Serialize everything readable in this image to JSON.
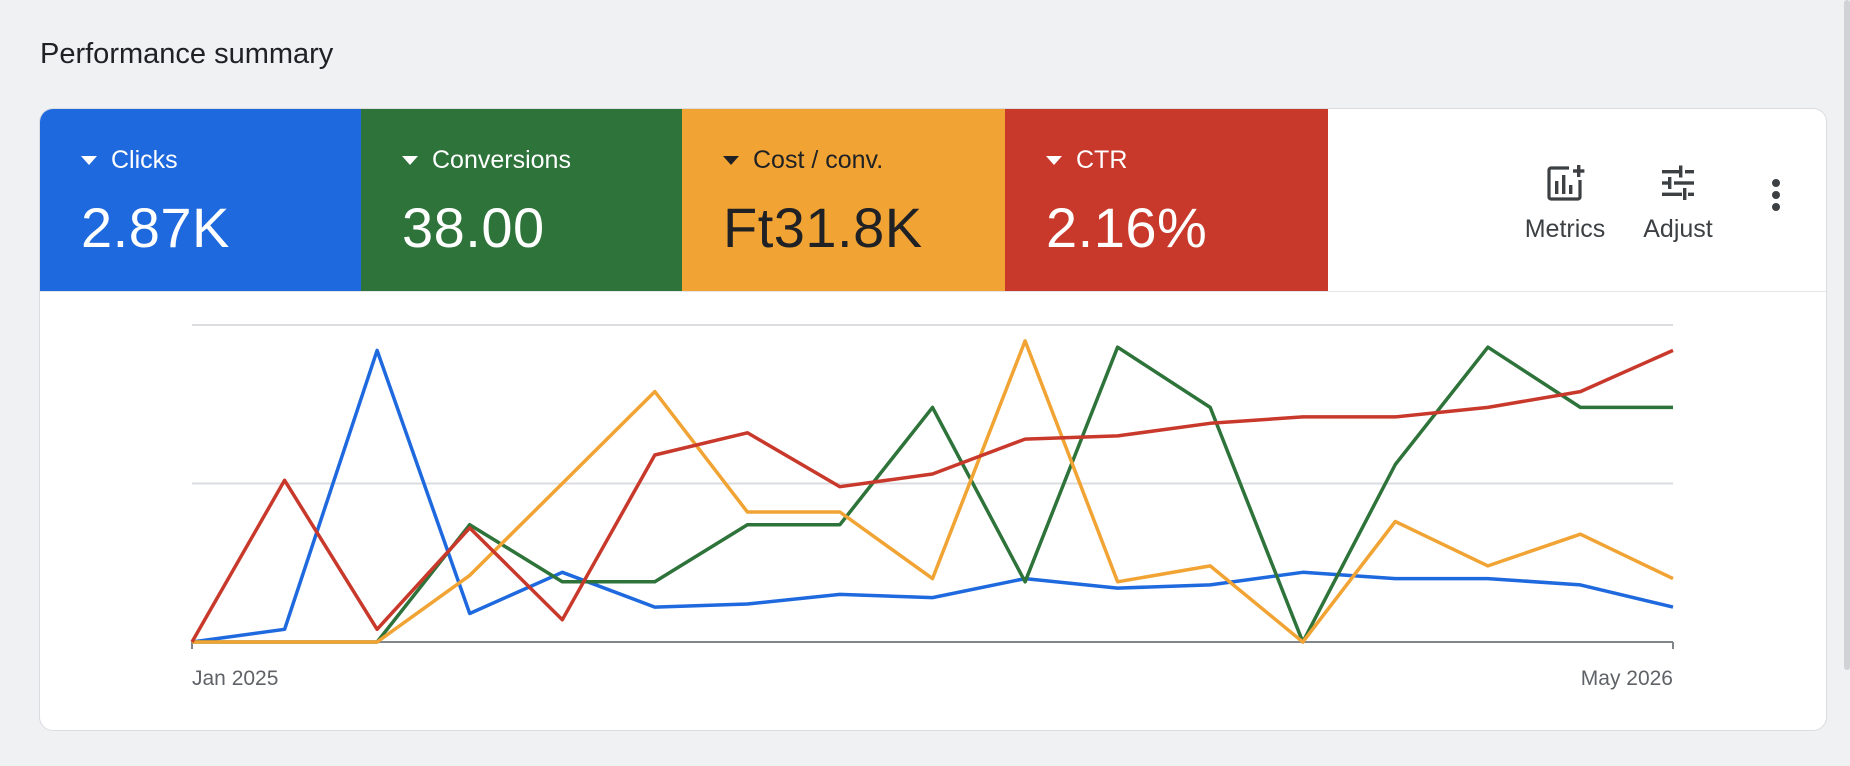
{
  "page": {
    "title": "Performance summary"
  },
  "metrics": [
    {
      "label": "Clicks",
      "value": "2.87K",
      "color": "#1f69df"
    },
    {
      "label": "Conversions",
      "value": "38.00",
      "color": "#2d733a"
    },
    {
      "label": "Cost / conv.",
      "value": "Ft31.8K",
      "color": "#f1a434"
    },
    {
      "label": "CTR",
      "value": "2.16%",
      "color": "#c8392b"
    }
  ],
  "toolbar": {
    "metrics_label": "Metrics",
    "adjust_label": "Adjust",
    "more_icon": "more-vert-icon"
  },
  "chart_data": {
    "type": "line",
    "x_start_label": "Jan 2025",
    "x_end_label": "May 2026",
    "grid": true,
    "y_normalized": true,
    "series": [
      {
        "name": "Clicks",
        "color": "#1f69df",
        "values": [
          0,
          0.04,
          0.92,
          0.09,
          0.22,
          0.11,
          0.12,
          0.15,
          0.14,
          0.2,
          0.17,
          0.18,
          0.22,
          0.2,
          0.2,
          0.18,
          0.11
        ]
      },
      {
        "name": "Conversions",
        "color": "#2d733a",
        "values": [
          0,
          0,
          0,
          0.37,
          0.19,
          0.19,
          0.37,
          0.37,
          0.74,
          0.19,
          0.93,
          0.74,
          0,
          0.56,
          0.93,
          0.74,
          0.74
        ]
      },
      {
        "name": "Cost / conv.",
        "color": "#f1a434",
        "values": [
          0,
          0,
          0,
          0.21,
          0.5,
          0.79,
          0.41,
          0.41,
          0.2,
          0.95,
          0.19,
          0.24,
          0,
          0.38,
          0.24,
          0.34,
          0.2
        ]
      },
      {
        "name": "CTR",
        "color": "#c8392b",
        "values": [
          0,
          0.51,
          0.04,
          0.36,
          0.07,
          0.59,
          0.66,
          0.49,
          0.53,
          0.64,
          0.65,
          0.69,
          0.71,
          0.71,
          0.74,
          0.79,
          0.92
        ]
      }
    ]
  }
}
